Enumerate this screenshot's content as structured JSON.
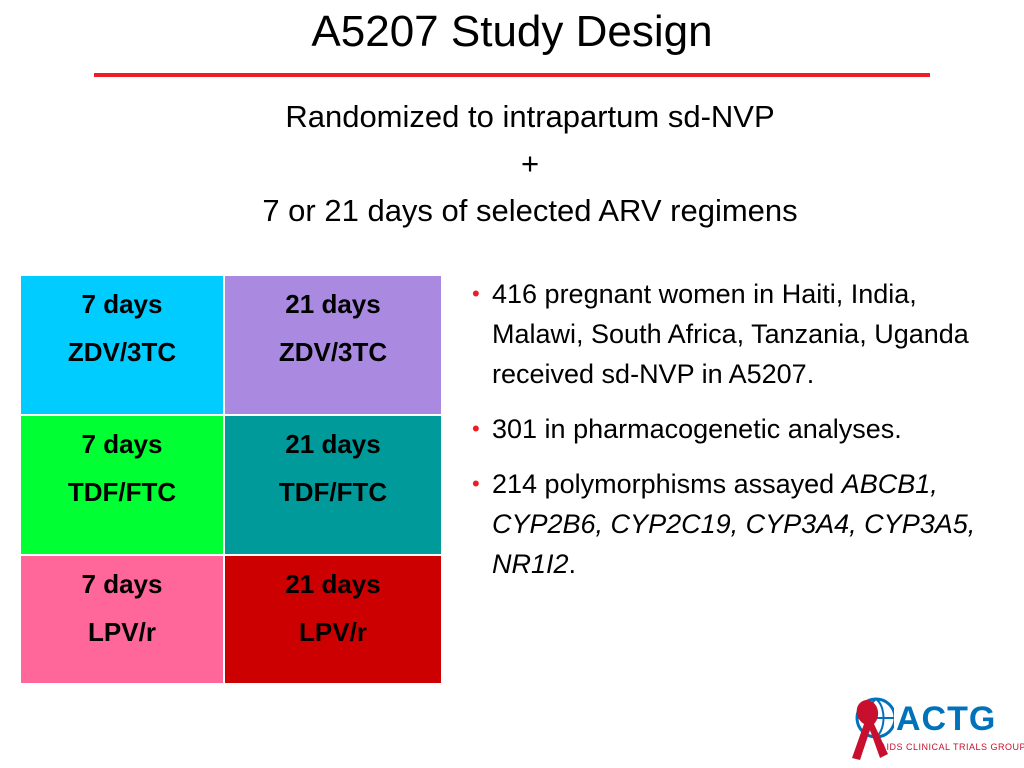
{
  "title": "A5207 Study Design",
  "subtitle": {
    "line1": "Randomized to intrapartum sd-NVP",
    "line2": "+",
    "line3": "7 or 21 days of selected ARV regimens"
  },
  "arms": [
    [
      {
        "days": "7 days",
        "regimen": "ZDV/3TC",
        "color": "#00ccff"
      },
      {
        "days": "21 days",
        "regimen": "ZDV/3TC",
        "color": "#a98ae0"
      }
    ],
    [
      {
        "days": "7 days",
        "regimen": "TDF/FTC",
        "color": "#00ff33"
      },
      {
        "days": "21 days",
        "regimen": "TDF/FTC",
        "color": "#009a9a"
      }
    ],
    [
      {
        "days": "7 days",
        "regimen": "LPV/r",
        "color": "#ff6699"
      },
      {
        "days": "21 days",
        "regimen": "LPV/r",
        "color": "#cc0000"
      }
    ]
  ],
  "bullets": {
    "b1": "416 pregnant women in Haiti, India, Malawi, South Africa, Tanzania, Uganda received sd-NVP in A5207.",
    "b2": "301 in pharmacogenetic analyses.",
    "b3_text": "214 polymorphisms  assayed",
    "b3_genes": "ABCB1, CYP2B6, CYP2C19, CYP3A4, CYP3A5, NR1I2",
    "b3_end": "."
  },
  "logo": {
    "icon": "red-ribbon-globe-icon",
    "word": "ACTG",
    "tagline": "AIDS CLINICAL TRIALS GROUP",
    "brand_blue": "#0072bc",
    "brand_red": "#c8102e"
  },
  "accent_color": "#ee1c24"
}
